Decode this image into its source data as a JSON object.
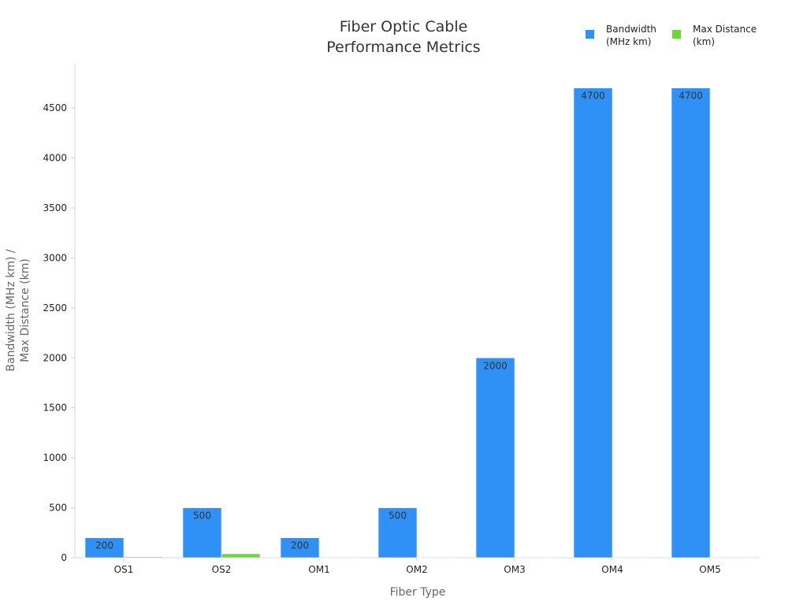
{
  "chart_data": {
    "type": "bar",
    "title_lines": [
      "Fiber Optic Cable",
      "Performance Metrics"
    ],
    "xlabel": "Fiber Type",
    "ylabel_lines": [
      "Bandwidth (MHz km) /",
      "Max Distance (km)"
    ],
    "categories": [
      "OS1",
      "OS2",
      "OM1",
      "OM2",
      "OM3",
      "OM4",
      "OM5"
    ],
    "series": [
      {
        "name_lines": [
          "Bandwidth",
          "(MHz km)"
        ],
        "color": "#2f90f5",
        "values": [
          200,
          500,
          200,
          500,
          2000,
          4700,
          4700
        ],
        "labels": [
          "200",
          "500",
          "200",
          "500",
          "2000",
          "4700",
          "4700"
        ]
      },
      {
        "name_lines": [
          "Max Distance",
          "(km)"
        ],
        "color": "#6ad838",
        "values": [
          10,
          40,
          0.3,
          0.55,
          0.3,
          0.4,
          0.4
        ],
        "labels": [
          "",
          "",
          "",
          "",
          "",
          "",
          ""
        ]
      }
    ],
    "ylim": [
      0,
      4950
    ],
    "yticks": [
      0,
      500,
      1000,
      1500,
      2000,
      2500,
      3000,
      3500,
      4000,
      4500
    ],
    "grid": false,
    "legend_position": "top-right"
  }
}
